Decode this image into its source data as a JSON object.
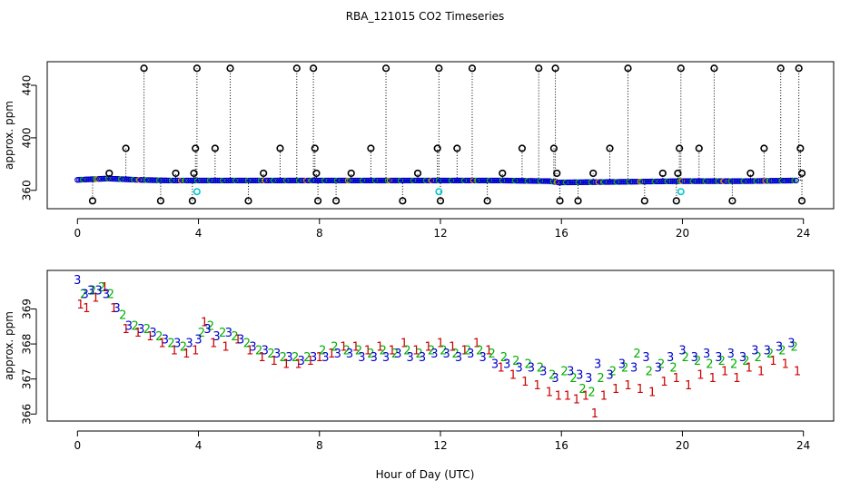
{
  "figure": {
    "title": "RBA_121015  CO2 Timeseries",
    "xlabel": "Hour of Day (UTC)"
  },
  "colors": {
    "axis": "#000000",
    "outlier": "#000000",
    "series1": "#cc0000",
    "series2": "#00b000",
    "series3": "#0000cc",
    "cyan": "#00c8c8",
    "orange": "#e08000"
  },
  "chart_data": [
    {
      "type": "scatter",
      "panel": "top",
      "ylabel": "approx. ppm",
      "xlim": [
        -1,
        25
      ],
      "ylim": [
        346,
        458
      ],
      "xticks": [
        0,
        4,
        8,
        12,
        16,
        20,
        24
      ],
      "xtick_labels": [
        "0",
        "4",
        "8",
        "12",
        "16",
        "20",
        "24"
      ],
      "yticks": [
        360,
        400,
        440
      ],
      "ytick_labels": [
        "360",
        "400",
        "440"
      ],
      "baseline": [
        [
          0,
          368
        ],
        [
          1,
          369
        ],
        [
          2,
          368
        ],
        [
          3,
          367.5
        ],
        [
          4,
          367.5
        ],
        [
          6,
          367.5
        ],
        [
          8,
          367.5
        ],
        [
          10,
          367.5
        ],
        [
          12,
          367.5
        ],
        [
          14,
          367.5
        ],
        [
          15.6,
          367
        ],
        [
          15.9,
          366
        ],
        [
          18,
          366.5
        ],
        [
          20,
          367
        ],
        [
          22,
          367
        ],
        [
          23.8,
          367.5
        ]
      ],
      "high_outliers": [
        2.2,
        3.95,
        5.05,
        7.25,
        7.8,
        10.2,
        11.95,
        13.05,
        15.25,
        15.8,
        18.2,
        19.95,
        21.05,
        23.25,
        23.85
      ],
      "high_value": 453,
      "mid_outliers": [
        1.6,
        3.9,
        4.55,
        6.7,
        7.85,
        9.7,
        11.9,
        12.55,
        14.7,
        15.75,
        17.6,
        19.9,
        20.55,
        22.7,
        23.9
      ],
      "mid_value": 392,
      "low_mid_outliers": [
        1.05,
        3.25,
        3.85,
        6.15,
        7.9,
        9.05,
        11.25,
        14.05,
        15.85,
        17.05,
        19.35,
        19.85,
        22.25,
        23.95
      ],
      "low_mid_value": 373,
      "low_outliers": [
        0.5,
        2.75,
        3.8,
        5.65,
        7.95,
        8.55,
        10.75,
        12.0,
        13.55,
        15.95,
        16.55,
        18.75,
        19.8,
        21.65,
        23.95
      ],
      "low_value": 352,
      "cyan_points": [
        [
          3.95,
          359
        ],
        [
          11.95,
          359
        ],
        [
          19.95,
          359
        ]
      ]
    },
    {
      "type": "scatter",
      "panel": "bottom",
      "ylabel": "approx. ppm",
      "xlim": [
        -1,
        25
      ],
      "ylim": [
        365.8,
        370.1
      ],
      "xticks": [
        0,
        4,
        8,
        12,
        16,
        20,
        24
      ],
      "xtick_labels": [
        "0",
        "4",
        "8",
        "12",
        "16",
        "20",
        "24"
      ],
      "yticks": [
        366,
        367,
        368,
        369
      ],
      "ytick_labels": [
        "366",
        "367",
        "368",
        "369"
      ],
      "series": [
        {
          "name": "1",
          "symbol": "1",
          "color_key": "series1",
          "x": [
            0.1,
            0.3,
            0.6,
            0.9,
            1.2,
            1.6,
            2.0,
            2.4,
            2.8,
            3.2,
            3.6,
            3.9,
            4.2,
            4.5,
            4.9,
            5.3,
            5.7,
            6.1,
            6.5,
            6.9,
            7.3,
            7.7,
            8.0,
            8.4,
            8.8,
            9.2,
            9.6,
            10.0,
            10.4,
            10.8,
            11.2,
            11.6,
            12.0,
            12.4,
            12.8,
            13.2,
            13.6,
            14.0,
            14.4,
            14.8,
            15.2,
            15.6,
            15.9,
            16.2,
            16.5,
            16.8,
            17.1,
            17.4,
            17.8,
            18.2,
            18.6,
            19.0,
            19.4,
            19.8,
            20.2,
            20.6,
            21.0,
            21.4,
            21.8,
            22.2,
            22.6,
            23.0,
            23.4,
            23.8
          ],
          "y": [
            369.1,
            369.0,
            369.3,
            369.6,
            369.0,
            368.4,
            368.3,
            368.2,
            368.0,
            367.8,
            367.7,
            367.8,
            368.6,
            368.0,
            367.9,
            368.1,
            367.8,
            367.6,
            367.5,
            367.4,
            367.4,
            367.5,
            367.6,
            367.7,
            367.9,
            367.9,
            367.8,
            367.9,
            367.8,
            368.0,
            367.8,
            367.9,
            368.0,
            367.9,
            367.8,
            368.0,
            367.8,
            367.3,
            367.1,
            366.9,
            366.8,
            366.6,
            366.5,
            366.5,
            366.4,
            366.5,
            366.0,
            366.5,
            366.7,
            366.8,
            366.7,
            366.6,
            366.9,
            367.0,
            366.8,
            367.1,
            367.0,
            367.2,
            367.0,
            367.3,
            367.2,
            367.5,
            367.4,
            367.2
          ]
        },
        {
          "name": "2",
          "symbol": "2",
          "color_key": "series2",
          "x": [
            0.2,
            0.5,
            0.8,
            1.1,
            1.5,
            1.9,
            2.3,
            2.7,
            3.1,
            3.5,
            4.1,
            4.4,
            4.8,
            5.2,
            5.6,
            6.0,
            6.4,
            6.8,
            7.2,
            7.6,
            8.1,
            8.5,
            8.9,
            9.3,
            9.7,
            10.1,
            10.5,
            10.9,
            11.3,
            11.7,
            12.1,
            12.5,
            12.9,
            13.3,
            13.7,
            14.1,
            14.5,
            14.9,
            15.3,
            15.7,
            16.1,
            16.4,
            16.7,
            17.0,
            17.3,
            17.7,
            18.1,
            18.5,
            18.9,
            19.3,
            19.7,
            20.1,
            20.5,
            20.9,
            21.3,
            21.7,
            22.1,
            22.5,
            22.9,
            23.3,
            23.7
          ],
          "y": [
            369.4,
            369.5,
            369.6,
            369.4,
            368.8,
            368.5,
            368.4,
            368.2,
            368.0,
            367.9,
            368.3,
            368.5,
            368.3,
            368.2,
            368.0,
            367.8,
            367.7,
            367.6,
            367.6,
            367.6,
            367.8,
            367.9,
            367.8,
            367.8,
            367.7,
            367.8,
            367.7,
            367.8,
            367.7,
            367.8,
            367.8,
            367.7,
            367.8,
            367.8,
            367.7,
            367.6,
            367.5,
            367.4,
            367.3,
            367.1,
            367.2,
            367.0,
            366.7,
            366.6,
            367.0,
            367.2,
            367.3,
            367.7,
            367.2,
            367.4,
            367.3,
            367.6,
            367.5,
            367.4,
            367.5,
            367.4,
            367.5,
            367.6,
            367.7,
            367.8,
            367.9
          ]
        },
        {
          "name": "3",
          "symbol": "3",
          "color_key": "series3",
          "x": [
            0.0,
            0.25,
            0.45,
            0.7,
            0.95,
            1.3,
            1.7,
            2.1,
            2.5,
            2.9,
            3.3,
            3.7,
            4.0,
            4.3,
            4.6,
            5.0,
            5.4,
            5.8,
            6.2,
            6.6,
            7.0,
            7.4,
            7.8,
            8.2,
            8.6,
            9.0,
            9.4,
            9.8,
            10.2,
            10.6,
            11.0,
            11.4,
            11.8,
            12.2,
            12.6,
            13.0,
            13.4,
            13.8,
            14.2,
            14.6,
            15.0,
            15.4,
            15.8,
            16.3,
            16.6,
            16.9,
            17.2,
            17.6,
            18.0,
            18.4,
            18.8,
            19.2,
            19.6,
            20.0,
            20.4,
            20.8,
            21.2,
            21.6,
            22.0,
            22.4,
            22.8,
            23.2,
            23.6
          ],
          "y": [
            369.8,
            369.4,
            369.5,
            369.5,
            369.4,
            369.0,
            368.5,
            368.4,
            368.3,
            368.1,
            368.0,
            368.0,
            368.1,
            368.4,
            368.2,
            368.3,
            368.1,
            367.9,
            367.8,
            367.7,
            367.6,
            367.5,
            367.6,
            367.6,
            367.7,
            367.7,
            367.6,
            367.6,
            367.6,
            367.7,
            367.6,
            367.6,
            367.7,
            367.7,
            367.6,
            367.7,
            367.6,
            367.4,
            367.4,
            367.3,
            367.3,
            367.2,
            367.0,
            367.2,
            367.1,
            367.0,
            367.4,
            367.1,
            367.4,
            367.3,
            367.6,
            367.3,
            367.6,
            367.8,
            367.6,
            367.7,
            367.6,
            367.7,
            367.6,
            367.8,
            367.8,
            367.9,
            368.0
          ]
        }
      ]
    }
  ]
}
